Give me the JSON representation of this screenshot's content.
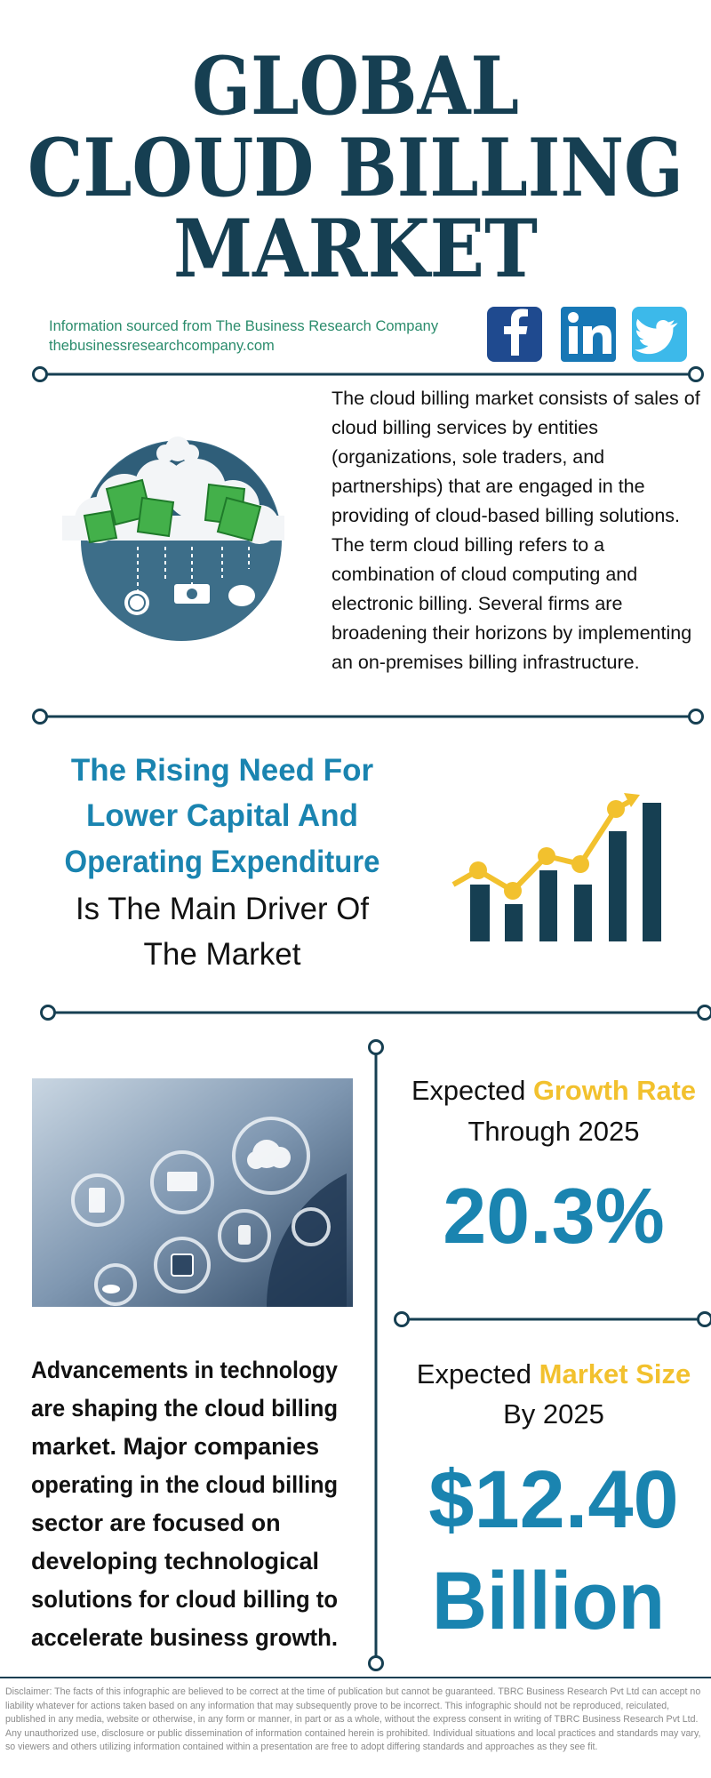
{
  "header": {
    "title_lines": [
      "GLOBAL",
      "CLOUD BILLING",
      "MARKET"
    ],
    "source": "Information sourced from The Business Research Company",
    "website": "thebusinessresearchcompany.com"
  },
  "description": "The cloud billing market consists of sales of cloud billing services by entities (organizations, sole traders, and partnerships) that are engaged in the providing of cloud-based billing solutions. The term cloud billing refers to a combination of cloud computing and electronic billing. Several firms are broadening their horizons by implementing an on-premises billing infrastructure.",
  "driver": {
    "highlight_lines": [
      "The Rising Need For",
      "Lower Capital And",
      "Operating Expenditure"
    ],
    "rest_lines": [
      "Is The Main Driver Of",
      "The Market"
    ]
  },
  "growth": {
    "label": "Expected",
    "highlight": "Growth Rate",
    "period": "Through 2025",
    "value": "20.3%"
  },
  "market_size": {
    "label": "Expected",
    "highlight": "Market Size",
    "period": "By 2025",
    "value_lines": [
      "$12.40",
      "Billion"
    ]
  },
  "trend": {
    "lines": [
      "Advancements in technology",
      "are shaping the cloud billing",
      "market. Major companies",
      "operating in the cloud billing",
      "sector are focused on",
      "developing technological",
      "solutions for cloud billing to",
      "accelerate business growth."
    ]
  },
  "disclaimer": "Disclaimer: The facts of this infographic are believed to be correct at the time of publication but cannot be guaranteed. TBRC Business Research Pvt Ltd can accept no liability whatever for actions taken based on any information that may subsequently prove to be incorrect. This infographic should not be reproduced, reiculated, published in any media, website or otherwise, in any form or manner, in part or as a whole, without the express consent in writing of TBRC Business Research Pvt Ltd. Any unauthorized use, disclosure or public dissemination of information contained herein is prohibited. Individual situations and local practices and standards may vary, so viewers and others utilizing information contained within a presentation are free to adopt differing standards and approaches as they see fit."
}
